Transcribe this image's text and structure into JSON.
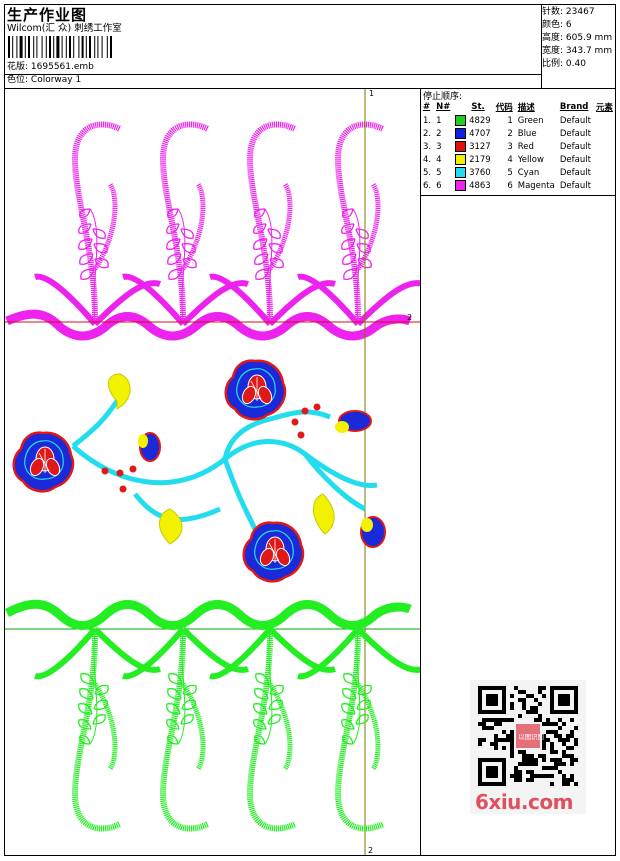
{
  "header": {
    "title": "生产作业图",
    "company": "Wilcom(汇 众) 刺绣工作室",
    "design_label": "花版:",
    "design_value": "1695561.emb",
    "colorway_label": "色位:",
    "colorway_value": "Colorway 1"
  },
  "stats": [
    {
      "label": "针数",
      "value": "23467"
    },
    {
      "label": "颜色",
      "value": "6"
    },
    {
      "label": "高度",
      "value": "605.9 mm"
    },
    {
      "label": "宽度",
      "value": "343.7 mm"
    },
    {
      "label": "比例",
      "value": "0.40"
    }
  ],
  "sequence": {
    "title": "停止顺序:",
    "headers": [
      "#",
      "N#",
      "St.",
      "代码",
      "描述",
      "Brand",
      "元素"
    ],
    "rows": [
      {
        "num": "1.",
        "n": "1",
        "color": "#22cc22",
        "st": "4829",
        "code": "1",
        "desc": "Green",
        "brand": "Default"
      },
      {
        "num": "2.",
        "n": "2",
        "color": "#1020e0",
        "st": "4707",
        "code": "2",
        "desc": "Blue",
        "brand": "Default"
      },
      {
        "num": "3.",
        "n": "3",
        "color": "#e01010",
        "st": "3127",
        "code": "3",
        "desc": "Red",
        "brand": "Default"
      },
      {
        "num": "4.",
        "n": "4",
        "color": "#f0f000",
        "st": "2179",
        "code": "4",
        "desc": "Yellow",
        "brand": "Default"
      },
      {
        "num": "5.",
        "n": "5",
        "color": "#22dded",
        "st": "3760",
        "code": "5",
        "desc": "Cyan",
        "brand": "Default"
      },
      {
        "num": "6.",
        "n": "6",
        "color": "#ee22ee",
        "st": "4863",
        "code": "6",
        "desc": "Magenta",
        "brand": "Default"
      }
    ]
  },
  "guides": {
    "top_marker": "1",
    "right_marker": "2",
    "bottom_marker": "2"
  },
  "watermark": {
    "text": "6xiu.com",
    "badge": "以图识图"
  },
  "colors": {
    "green": "#22ee22",
    "blue": "#1a2ad8",
    "red": "#e01818",
    "yellow": "#f2f200",
    "cyan": "#22ddee",
    "magenta": "#ee22ee",
    "guide_red": "#d01010",
    "guide_green": "#00aa00",
    "guide_olive": "#7a7a00"
  }
}
